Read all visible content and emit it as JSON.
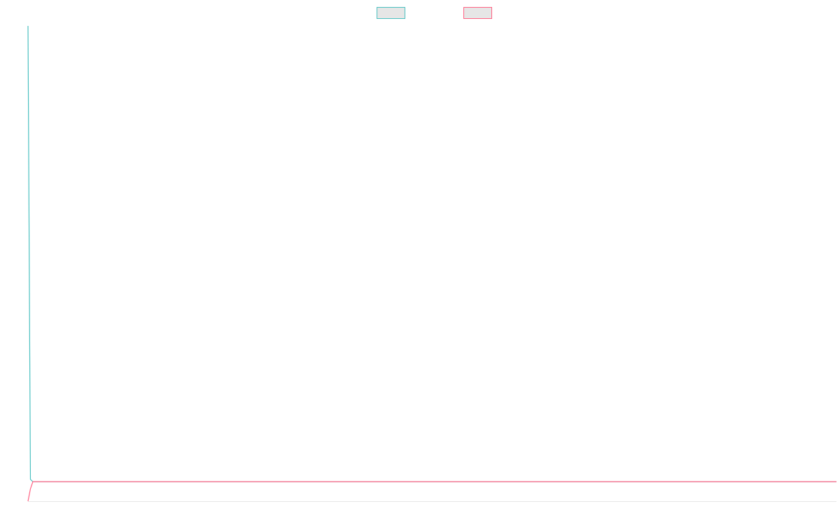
{
  "chart_data": {
    "type": "line",
    "x": [
      0,
      0.3,
      0.6,
      100
    ],
    "xlim": [
      0,
      100
    ],
    "ylim": [
      0,
      100
    ],
    "series": [
      {
        "color": "#4bc0c0",
        "values": [
          100,
          4.6,
          4.1,
          4.1
        ]
      },
      {
        "color": "#ff6384",
        "values": [
          0,
          2.6,
          4.1,
          4.1
        ]
      }
    ],
    "legend": "top",
    "grid": false
  }
}
